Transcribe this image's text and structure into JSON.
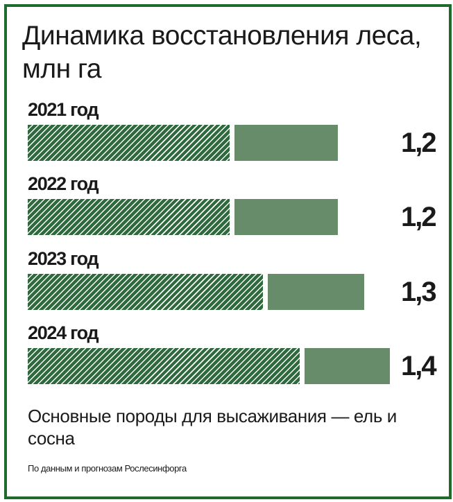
{
  "colors": {
    "border": "#1f6b2c",
    "hatched_segment": "#2f6a3e",
    "solid_segment": "#678c6a"
  },
  "chart_data": {
    "type": "bar",
    "orientation": "horizontal",
    "stacked": true,
    "title": "Динамика восстановления леса, млн га",
    "categories": [
      "2021 год",
      "2022 год",
      "2023 год",
      "2024 год"
    ],
    "values": [
      1.2,
      1.2,
      1.3,
      1.4
    ],
    "value_labels": [
      "1,2",
      "1,2",
      "1,3",
      "1,4"
    ],
    "hatched_share": [
      0.65,
      0.65,
      0.7,
      0.75
    ],
    "legend": "none",
    "grid": false
  },
  "subtitle": "Основные породы для высаживания — ель и сосна",
  "source": "По данным и прогнозам Рослесинфорга"
}
